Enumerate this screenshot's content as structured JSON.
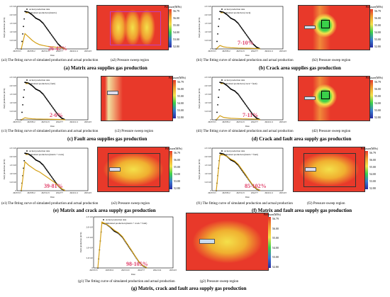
{
  "x_ticks": [
    "2023/3/15",
    "2023/8/12",
    "2023/11/9",
    "2024/2/7",
    "2024/11/4",
    "2025/4/3"
  ],
  "x_ticks_short": [
    "2023/3/15",
    "2023/8/12",
    "2023/11/9",
    "2024/7/7",
    "2024/11/4",
    "2025/4/3"
  ],
  "x_label": "Date",
  "y_label": "Daily production (m³/d)",
  "y_ticks": [
    "2.5×10⁴",
    "2.0×10⁴",
    "1.5×10⁴",
    "1.0×10⁴",
    "5.0×10³",
    "0"
  ],
  "cb_title": "Pressure(MPa)",
  "cb_ticks": [
    "56.79",
    "56.00",
    "55.00",
    "54.00",
    "53.00",
    "52.80"
  ],
  "panels": {
    "a": {
      "legend1": "Actual production data",
      "legend2": "Simulated production (matrix)",
      "pct": "26-47%",
      "cap1": "(a1) The fitting curve of simulated production and actual production",
      "cap2": "(a2) Pressure sweep region",
      "heading": "(a) Matrix area supplies gas production"
    },
    "b": {
      "legend1": "Actual production data",
      "legend2": "Simulated production (crack)",
      "pct": "7-10%",
      "cap1": "(b1) The fitting curve of simulated production and actual production",
      "cap2": "(b2) Pressure sweep region",
      "heading": "(b) Crack area supplies gas production"
    },
    "c": {
      "legend1": "Actual production data",
      "legend2": "Simulated production ( fault)",
      "pct": "2-6%",
      "cap1": "(c1) The fitting curve of simulated production and actual production",
      "cap2": "(c2) Pressure sweep region",
      "heading": "(c) Fault area supplies gas production"
    },
    "d": {
      "legend1": "Actual production data",
      "legend2": "Simulated production (crack + fault)",
      "pct": "7-11%",
      "cap1": "(d1) The fitting curve of simulated production and actual production",
      "cap2": "(d2) Pressure sweep region",
      "heading": "(d) Crack and fault area supply gas production"
    },
    "e": {
      "legend1": "Actual production data",
      "legend2": "Simulated production (matrix + crack)",
      "pct": "39-81%",
      "cap1": "(e1) The fitting curve of simulated production and actual production",
      "cap2": "(e2) Pressure sweep region",
      "heading": "(e) Matrix and crack area supply gas production"
    },
    "f": {
      "legend1": "Actual production data",
      "legend2": "Simulated production (matrix + fault)",
      "pct": "85-102%",
      "cap1": "(f1) The fitting curve of simulated production and actual production",
      "cap2": "(f2) Pressure sweep region",
      "heading": "(f) Matrix and fault area supply gas production"
    },
    "g": {
      "legend1": "Actual production data",
      "legend2": "Simulated production (matrix + crack + fault)",
      "pct": "98-105%",
      "cap1": "(g1) The fitting curve of simulated production and actual production",
      "cap2": "(g2) Pressure sweep region",
      "heading": "(g) Matrix, crack and  fault area supply gas production"
    }
  },
  "map_labels": {
    "a_box": "Matrix",
    "b_box1": "Crack",
    "b_box2": "Fault",
    "d_box1": "Crack",
    "d_box2": "Fault",
    "e_box": "Matrix",
    "f_box": "Matrix"
  },
  "colors": {
    "actual": "#000000",
    "simulated": "#d4a017",
    "heat_bg": "#e8392a",
    "annot": "#e0406a"
  },
  "chart_data": [
    {
      "type": "line",
      "id": "a1",
      "series": [
        {
          "name": "Actual production data",
          "values": [
            0,
            22000,
            21500,
            20000,
            18000,
            17000,
            15000,
            12000,
            9000,
            6000,
            3000,
            1000,
            0
          ]
        },
        {
          "name": "Simulated production (matrix)",
          "values": [
            0,
            9000,
            7000,
            5000,
            3500,
            2500,
            2000,
            1600,
            1300,
            1100,
            900,
            700,
            0
          ]
        }
      ],
      "ylim": [
        0,
        25000
      ]
    },
    {
      "type": "line",
      "id": "b1",
      "series": [
        {
          "name": "Actual production data",
          "values": [
            0,
            22000,
            21500,
            20000,
            18000,
            17000,
            15000,
            12000,
            9000,
            6000,
            3000,
            1000,
            0
          ]
        },
        {
          "name": "Simulated production (crack)",
          "values": [
            0,
            2000,
            1200,
            900,
            700,
            600,
            500,
            450,
            400,
            350,
            300,
            250,
            0
          ]
        }
      ],
      "ylim": [
        0,
        25000
      ]
    },
    {
      "type": "line",
      "id": "c1",
      "series": [
        {
          "name": "Actual production data",
          "values": [
            0,
            22000,
            21500,
            20000,
            18000,
            17000,
            15000,
            12000,
            9000,
            6000,
            3000,
            1000,
            0
          ]
        },
        {
          "name": "Simulated production ( fault)",
          "values": [
            0,
            1200,
            800,
            600,
            500,
            450,
            400,
            350,
            300,
            250,
            200,
            150,
            0
          ]
        }
      ],
      "ylim": [
        0,
        25000
      ]
    },
    {
      "type": "line",
      "id": "d1",
      "series": [
        {
          "name": "Actual production data",
          "values": [
            0,
            22000,
            21500,
            20000,
            18000,
            17000,
            15000,
            12000,
            9000,
            6000,
            3000,
            1000,
            0
          ]
        },
        {
          "name": "Simulated production (crack + fault)",
          "values": [
            0,
            2400,
            1400,
            1100,
            900,
            800,
            700,
            600,
            550,
            500,
            450,
            400,
            0
          ]
        }
      ],
      "ylim": [
        0,
        25000
      ]
    },
    {
      "type": "line",
      "id": "e1",
      "series": [
        {
          "name": "Actual production data",
          "values": [
            0,
            22000,
            21500,
            20000,
            18000,
            17000,
            15000,
            12000,
            9000,
            6000,
            3000,
            1000,
            0
          ]
        },
        {
          "name": "Simulated production (matrix + crack)",
          "values": [
            0,
            17000,
            15000,
            13500,
            12000,
            11000,
            9500,
            8000,
            6500,
            5000,
            3000,
            1200,
            0
          ]
        }
      ],
      "ylim": [
        0,
        25000
      ]
    },
    {
      "type": "line",
      "id": "f1",
      "series": [
        {
          "name": "Actual production data",
          "values": [
            0,
            22000,
            21500,
            20000,
            18000,
            17000,
            15000,
            12000,
            9000,
            6000,
            3000,
            1000,
            0
          ]
        },
        {
          "name": "Simulated production (matrix + fault)",
          "values": [
            0,
            21000,
            21000,
            20000,
            18500,
            17500,
            15500,
            12500,
            9500,
            6200,
            3200,
            1100,
            0
          ]
        }
      ],
      "ylim": [
        0,
        25000
      ]
    },
    {
      "type": "line",
      "id": "g1",
      "series": [
        {
          "name": "Actual production data",
          "values": [
            0,
            22000,
            21500,
            20000,
            18000,
            17000,
            15000,
            12000,
            9000,
            6000,
            3000,
            1000,
            0
          ]
        },
        {
          "name": "Simulated production (matrix + crack + fault)",
          "values": [
            0,
            22500,
            21500,
            20200,
            18500,
            17300,
            15300,
            12300,
            9300,
            6100,
            3100,
            1050,
            0
          ]
        }
      ],
      "ylim": [
        0,
        25000
      ]
    }
  ]
}
